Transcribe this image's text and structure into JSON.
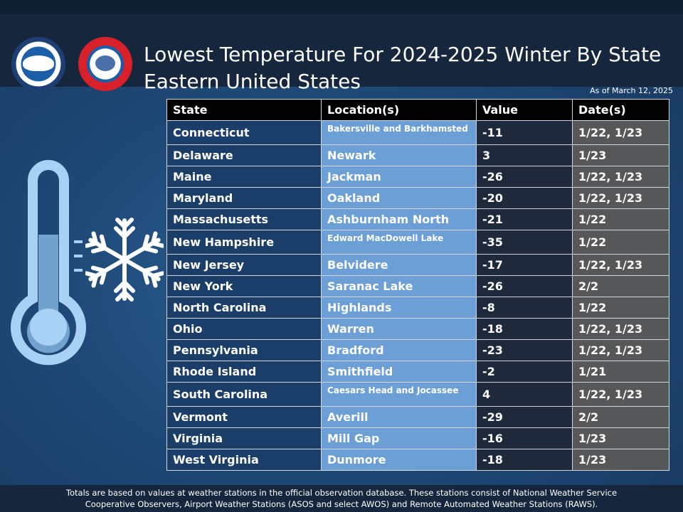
{
  "header": {
    "title_line1": "Lowest Temperature For 2024-2025 Winter By State",
    "title_line2": "Eastern United States",
    "as_of": "As of March 12, 2025",
    "noaa_logo_text": "NOAA",
    "nws_logo_text": "NATIONAL WEATHER SERVICE"
  },
  "table": {
    "headers": [
      "State",
      "Location(s)",
      "Value",
      "Date(s)"
    ],
    "rows": [
      {
        "state": "Connecticut",
        "location": "Bakersville and Barkhamsted",
        "value": "-11",
        "dates": "1/22, 1/23"
      },
      {
        "state": "Delaware",
        "location": "Newark",
        "value": "3",
        "dates": "1/23"
      },
      {
        "state": "Maine",
        "location": "Jackman",
        "value": "-26",
        "dates": "1/22, 1/23"
      },
      {
        "state": "Maryland",
        "location": "Oakland",
        "value": "-20",
        "dates": "1/22, 1/23"
      },
      {
        "state": "Massachusetts",
        "location": "Ashburnham North",
        "value": "-21",
        "dates": "1/22"
      },
      {
        "state": "New Hampshire",
        "location": "Edward MacDowell Lake",
        "value": "-35",
        "dates": "1/22"
      },
      {
        "state": "New Jersey",
        "location": "Belvidere",
        "value": "-17",
        "dates": "1/22, 1/23"
      },
      {
        "state": "New York",
        "location": "Saranac Lake",
        "value": "-26",
        "dates": "2/2"
      },
      {
        "state": "North Carolina",
        "location": "Highlands",
        "value": "-8",
        "dates": "1/22"
      },
      {
        "state": "Ohio",
        "location": "Warren",
        "value": "-18",
        "dates": "1/22, 1/23"
      },
      {
        "state": "Pennsylvania",
        "location": "Bradford",
        "value": "-23",
        "dates": "1/22, 1/23"
      },
      {
        "state": "Rhode Island",
        "location": "Smithfield",
        "value": "-2",
        "dates": "1/21"
      },
      {
        "state": "South Carolina",
        "location": "Caesars Head and Jocassee",
        "value": "4",
        "dates": "1/22, 1/23"
      },
      {
        "state": "Vermont",
        "location": "Averill",
        "value": "-29",
        "dates": "2/2"
      },
      {
        "state": "Virginia",
        "location": "Mill Gap",
        "value": "-16",
        "dates": "1/23"
      },
      {
        "state": "West Virginia",
        "location": "Dunmore",
        "value": "-18",
        "dates": "1/23"
      }
    ]
  },
  "footer": {
    "line1": "Totals are based on values at weather stations in the official observation database. These stations consist of National Weather Service",
    "line2": "Cooperative Observers, Airport Weather Stations (ASOS and select AWOS) and Remote Automated Weather Stations (RAWS)."
  },
  "icons": [
    "noaa-logo",
    "nws-logo",
    "thermometer-icon",
    "snowflake-icon"
  ],
  "colors": {
    "header_bg": "#16263d",
    "state_col": "#1b3e68",
    "location_col": "#6b9fd6",
    "value_col": "#1e2a3b",
    "date_col": "#555758",
    "table_header": "#000000"
  }
}
